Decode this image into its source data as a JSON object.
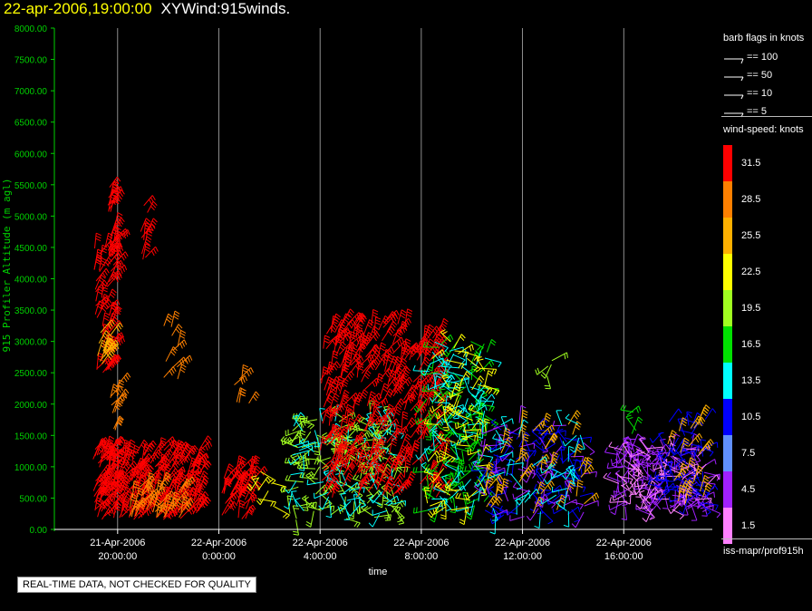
{
  "header": {
    "datetime": "22-apr-2006,19:00:00",
    "product": "XYWind:915winds."
  },
  "notice": "REAL-TIME DATA, NOT CHECKED FOR QUALITY",
  "legend": {
    "barb_title": "barb flags in knots",
    "barb_flags": [
      "== 100",
      "== 50",
      "== 10",
      "== 5"
    ],
    "speed_title": "wind-speed: knots",
    "speed_scale": [
      {
        "value": "31.5",
        "color": "#ff0000"
      },
      {
        "value": "28.5",
        "color": "#ff8000"
      },
      {
        "value": "25.5",
        "color": "#ffb000"
      },
      {
        "value": "22.5",
        "color": "#ffff00"
      },
      {
        "value": "19.5",
        "color": "#a0ff20"
      },
      {
        "value": "16.5",
        "color": "#00e000"
      },
      {
        "value": "13.5",
        "color": "#00ffff"
      },
      {
        "value": "10.5",
        "color": "#0000ff"
      },
      {
        "value": "7.5",
        "color": "#6090ff"
      },
      {
        "value": "4.5",
        "color": "#a020ff"
      },
      {
        "value": "1.5",
        "color": "#ff80ff"
      }
    ],
    "footer": "iss-mapr/prof915h"
  },
  "chart_data": {
    "type": "scatter",
    "ylabel": "915 Profiler Altitude (m agl)",
    "xlabel": "time",
    "ylim": [
      0,
      8000
    ],
    "yticks": [
      "0.00",
      "500.00",
      "1000.00",
      "1500.00",
      "2000.00",
      "2500.00",
      "3000.00",
      "3500.00",
      "4000.00",
      "4500.00",
      "5000.00",
      "5500.00",
      "6000.00",
      "6500.00",
      "7000.00",
      "7500.00",
      "8000.00"
    ],
    "x_range_hours": [
      -2.5,
      23.5
    ],
    "xticks": [
      {
        "date": "21-Apr-2006",
        "time": "20:00:00",
        "hour": 0
      },
      {
        "date": "22-Apr-2006",
        "time": "0:00:00",
        "hour": 4
      },
      {
        "date": "22-Apr-2006",
        "time": "4:00:00",
        "hour": 8
      },
      {
        "date": "22-Apr-2006",
        "time": "8:00:00",
        "hour": 12
      },
      {
        "date": "22-Apr-2006",
        "time": "12:00:00",
        "hour": 16
      },
      {
        "date": "22-Apr-2006",
        "time": "16:00:00",
        "hour": 20
      }
    ],
    "grid": true,
    "series": [
      {
        "t0": -1.0,
        "t1": 0.1,
        "alt0": 150,
        "alt1": 1300,
        "speed": 31.5,
        "density": 90
      },
      {
        "t0": 0.1,
        "t1": 3.3,
        "alt0": 150,
        "alt1": 1300,
        "speed": 31.5,
        "density": 170
      },
      {
        "t0": 0.3,
        "t1": 2.6,
        "alt0": 150,
        "alt1": 700,
        "speed": 28.5,
        "density": 40
      },
      {
        "t0": -0.95,
        "t1": -0.2,
        "alt0": 2500,
        "alt1": 4600,
        "speed": 31.5,
        "density": 60
      },
      {
        "t0": -0.9,
        "t1": -0.3,
        "alt0": 2600,
        "alt1": 3200,
        "speed": 25.5,
        "density": 15
      },
      {
        "t0": -0.4,
        "t1": -0.1,
        "alt0": 4200,
        "alt1": 5500,
        "speed": 31.5,
        "density": 25
      },
      {
        "t0": -0.3,
        "t1": 0.0,
        "alt0": 1500,
        "alt1": 2300,
        "speed": 28.5,
        "density": 10
      },
      {
        "t0": 0.9,
        "t1": 1.2,
        "alt0": 4300,
        "alt1": 5200,
        "speed": 31.5,
        "density": 10
      },
      {
        "t0": 1.6,
        "t1": 2.4,
        "alt0": 2300,
        "alt1": 3300,
        "speed": 28.5,
        "density": 10
      },
      {
        "t0": 4.1,
        "t1": 5.4,
        "alt0": 150,
        "alt1": 1000,
        "speed": 31.5,
        "density": 45
      },
      {
        "t0": 4.5,
        "t1": 5.2,
        "alt0": 1900,
        "alt1": 2400,
        "speed": 28.5,
        "density": 6
      },
      {
        "t0": 5.5,
        "t1": 6.2,
        "alt0": 300,
        "alt1": 1000,
        "speed": 22.5,
        "density": 8
      },
      {
        "t0": 6.8,
        "t1": 11.0,
        "alt0": 150,
        "alt1": 1800,
        "speed": 19.5,
        "density": 130
      },
      {
        "t0": 6.8,
        "t1": 11.0,
        "alt0": 150,
        "alt1": 1800,
        "speed": 13.5,
        "density": 70
      },
      {
        "t0": 8.0,
        "t1": 12.8,
        "alt0": 500,
        "alt1": 3300,
        "speed": 31.5,
        "density": 330
      },
      {
        "t0": 12.2,
        "t1": 14.6,
        "alt0": 300,
        "alt1": 3000,
        "speed": 16.5,
        "density": 90
      },
      {
        "t0": 12.2,
        "t1": 14.6,
        "alt0": 300,
        "alt1": 3000,
        "speed": 13.5,
        "density": 80
      },
      {
        "t0": 12.2,
        "t1": 14.6,
        "alt0": 300,
        "alt1": 3000,
        "speed": 22.5,
        "density": 60
      },
      {
        "t0": 14.5,
        "t1": 18.5,
        "alt0": 200,
        "alt1": 1700,
        "speed": 10.5,
        "density": 80
      },
      {
        "t0": 14.5,
        "t1": 18.5,
        "alt0": 200,
        "alt1": 1700,
        "speed": 4.5,
        "density": 50
      },
      {
        "t0": 14.5,
        "t1": 18.5,
        "alt0": 200,
        "alt1": 1700,
        "speed": 25.5,
        "density": 40
      },
      {
        "t0": 14.5,
        "t1": 18.5,
        "alt0": 200,
        "alt1": 1700,
        "speed": 13.5,
        "density": 40
      },
      {
        "t0": 15.5,
        "t1": 17.2,
        "alt0": 2300,
        "alt1": 2700,
        "speed": 19.5,
        "density": 4
      },
      {
        "t0": 19.7,
        "t1": 23.3,
        "alt0": 300,
        "alt1": 1300,
        "speed": 4.5,
        "density": 130
      },
      {
        "t0": 19.7,
        "t1": 23.3,
        "alt0": 300,
        "alt1": 1300,
        "speed": 1.5,
        "density": 60
      },
      {
        "t0": 21.5,
        "t1": 23.3,
        "alt0": 400,
        "alt1": 1800,
        "speed": 10.5,
        "density": 60
      },
      {
        "t0": 21.5,
        "t1": 23.3,
        "alt0": 400,
        "alt1": 1800,
        "speed": 25.5,
        "density": 20
      },
      {
        "t0": 19.7,
        "t1": 20.5,
        "alt0": 1500,
        "alt1": 2000,
        "speed": 16.5,
        "density": 4
      }
    ]
  }
}
